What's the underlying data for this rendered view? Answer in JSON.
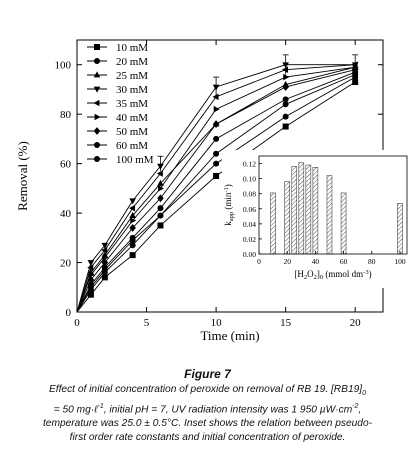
{
  "chart_data": [
    {
      "type": "line",
      "xlabel": "Time (min)",
      "ylabel": "Removal (%)",
      "xlim": [
        0,
        22
      ],
      "ylim": [
        0,
        110
      ],
      "xticks": [
        0,
        5,
        10,
        15,
        20
      ],
      "yticks": [
        0,
        20,
        40,
        60,
        80,
        100
      ],
      "legend_position": "top-left",
      "x": [
        0,
        1,
        2,
        4,
        6,
        10,
        15,
        20
      ],
      "series": [
        {
          "name": "10 mM",
          "marker": "square",
          "values": [
            0,
            7,
            14,
            23,
            35,
            55,
            75,
            93
          ]
        },
        {
          "name": "20 mM",
          "marker": "circle",
          "values": [
            0,
            9,
            16,
            27,
            39,
            60,
            79,
            95
          ]
        },
        {
          "name": "25 mM",
          "marker": "triangle-up",
          "values": [
            0,
            16,
            23,
            39,
            52,
            76,
            92,
            99
          ]
        },
        {
          "name": "30 mM",
          "marker": "triangle-down",
          "values": [
            0,
            20,
            27,
            45,
            59,
            91,
            100,
            100
          ]
        },
        {
          "name": "35 mM",
          "marker": "triangle-left",
          "values": [
            0,
            18,
            25,
            42,
            56,
            87,
            98,
            100
          ]
        },
        {
          "name": "40 mM",
          "marker": "triangle-right",
          "values": [
            0,
            15,
            22,
            37,
            50,
            82,
            95,
            99
          ]
        },
        {
          "name": "50 mM",
          "marker": "diamond",
          "values": [
            0,
            13,
            20,
            34,
            46,
            76,
            91,
            98
          ]
        },
        {
          "name": "60 mM",
          "marker": "circle",
          "values": [
            0,
            11,
            18,
            30,
            42,
            70,
            86,
            97
          ]
        },
        {
          "name": "100 mM",
          "marker": "circle",
          "values": [
            0,
            10,
            17,
            29,
            39,
            64,
            84,
            96
          ]
        }
      ]
    },
    {
      "type": "bar",
      "title": "",
      "xlabel_main": "[H",
      "xlabel_sub1": "2",
      "xlabel_mid": "O",
      "xlabel_sub2": "2",
      "xlabel_close": "]",
      "xlabel_sub3": "0",
      "xlabel_units": " (mmol dm",
      "xlabel_sup": "-3",
      "xlabel_end": ")",
      "ylabel_main": "k",
      "ylabel_sub": "app",
      "ylabel_units": " (min",
      "ylabel_sup": "-1",
      "ylabel_end": ")",
      "xlim": [
        0,
        105
      ],
      "ylim": [
        0,
        0.13
      ],
      "xticks": [
        0,
        20,
        40,
        60,
        80,
        100
      ],
      "yticks": [
        0.0,
        0.02,
        0.04,
        0.06,
        0.08,
        0.1,
        0.12
      ],
      "x": [
        10,
        20,
        25,
        30,
        35,
        40,
        50,
        60,
        100
      ],
      "values": [
        0.081,
        0.096,
        0.116,
        0.121,
        0.118,
        0.115,
        0.104,
        0.081,
        0.067
      ]
    }
  ],
  "caption": {
    "title": "Figure 7",
    "line1": "Effect of initial concentration of peroxide on removal of RB 19. [RB19]",
    "line1_sub": "0",
    "line2": "= 50 mg·ℓ",
    "line2_sup": "-1",
    "line2b": ", initial pH = 7, UV radiation intensity was 1 950 µW·cm",
    "line2b_sup": "-2",
    "line2c": ",",
    "line3": "temperature was 25.0 ± 0.5°C. Inset shows the relation between pseudo-",
    "line4": "first order rate constants and initial concentration of peroxide."
  }
}
